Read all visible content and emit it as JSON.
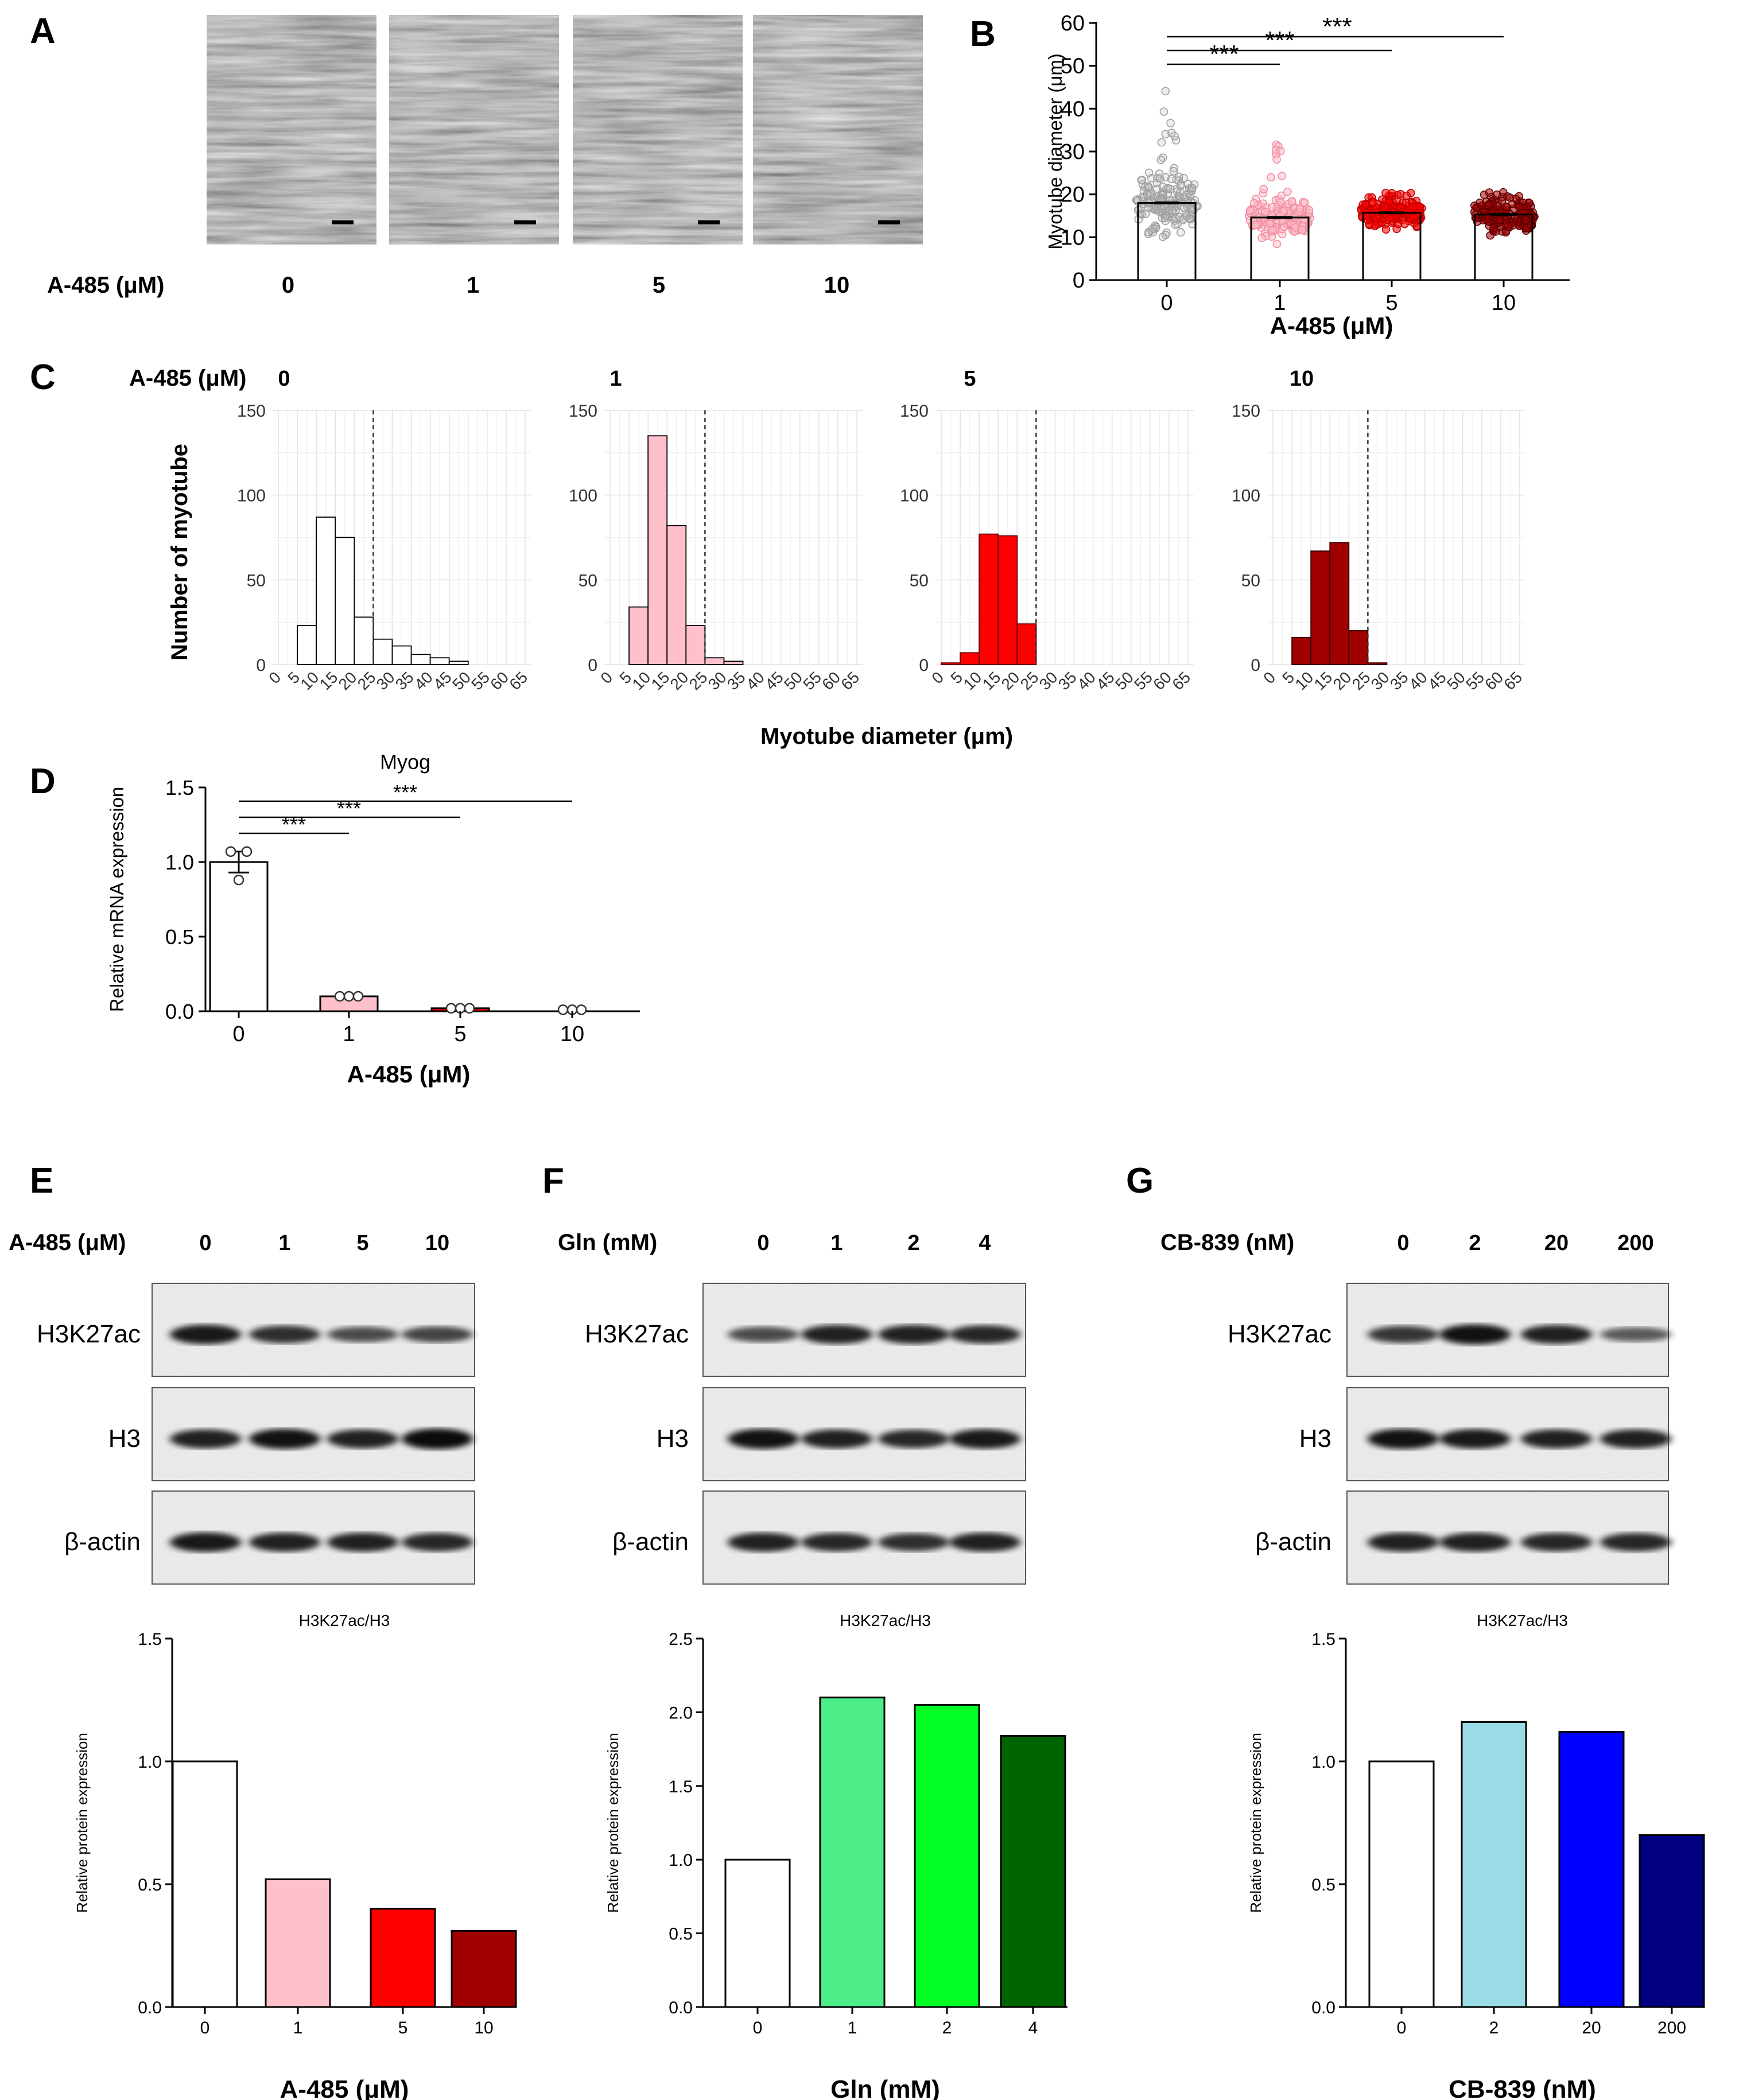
{
  "panel_labels": [
    "A",
    "B",
    "C",
    "D",
    "E",
    "F",
    "G"
  ],
  "colors": {
    "white": "#ffffff",
    "pink": "#ffc0cb",
    "red": "#ff0000",
    "darkred": "#a00000",
    "gray_points": "#bdbdbd",
    "aqua": "#99dce6",
    "blue": "#0000ff",
    "navy": "#000080",
    "mint": "#4ded8a",
    "lime": "#00ff22",
    "darkgreen": "#006400"
  },
  "panel_a": {
    "label": "A-485 (μM)",
    "doses": [
      "0",
      "1",
      "5",
      "10"
    ]
  },
  "chart_data": [
    {
      "id": "B",
      "type": "bar",
      "ylabel": "Myotube diameter (μm)",
      "xlabel": "A-485 (μM)",
      "categories": [
        "0",
        "1",
        "5",
        "10"
      ],
      "values": [
        18,
        14.6,
        15.7,
        15.3
      ],
      "ylim": [
        0,
        60
      ],
      "yticks": [
        0,
        10,
        20,
        30,
        40,
        50,
        60
      ],
      "points_overlay": true,
      "significance": [
        {
          "from": "0",
          "to": "1",
          "label": "***"
        },
        {
          "from": "0",
          "to": "5",
          "label": "***"
        },
        {
          "from": "0",
          "to": "10",
          "label": "***"
        }
      ]
    },
    {
      "id": "C",
      "type": "bar",
      "row_label": "A-485 (μM)",
      "ylabel": "Number of myotube",
      "xlabel": "Myotube diameter (μm)",
      "bin_edges": [
        0,
        5,
        10,
        15,
        20,
        25,
        30,
        35,
        40,
        45,
        50,
        55,
        60,
        65
      ],
      "ylim": [
        0,
        150
      ],
      "yticks": [
        0,
        50,
        100,
        150
      ],
      "reference_line_x": 25,
      "series": [
        {
          "name": "0",
          "counts": [
            0,
            23,
            87,
            75,
            28,
            15,
            11,
            6,
            4,
            2,
            0,
            0,
            0
          ]
        },
        {
          "name": "1",
          "counts": [
            0,
            34,
            135,
            82,
            23,
            4,
            2,
            0,
            0,
            0,
            0,
            0,
            0
          ]
        },
        {
          "name": "5",
          "counts": [
            1,
            7,
            77,
            76,
            24,
            0,
            0,
            0,
            0,
            0,
            0,
            0,
            0
          ]
        },
        {
          "name": "10",
          "counts": [
            0,
            16,
            67,
            72,
            20,
            1,
            0,
            0,
            0,
            0,
            0,
            0,
            0
          ]
        }
      ]
    },
    {
      "id": "D",
      "type": "bar",
      "title": "Myog",
      "ylabel": "Relative mRNA expression",
      "xlabel": "A-485 (μM)",
      "categories": [
        "0",
        "1",
        "5",
        "10"
      ],
      "values": [
        1.0,
        0.1,
        0.02,
        0.0
      ],
      "errors": [
        0.07,
        0,
        0,
        0
      ],
      "points": [
        [
          1.07,
          1.07,
          0.88
        ],
        [
          0.1,
          0.1,
          0.1
        ],
        [
          0.02,
          0.02,
          0.02
        ],
        [
          0.01,
          0.01,
          0.01
        ]
      ],
      "ylim": [
        0,
        1.5
      ],
      "yticks": [
        "0.0",
        "0.5",
        "1.0",
        "1.5"
      ],
      "significance": [
        {
          "from": "0",
          "to": "1",
          "label": "***"
        },
        {
          "from": "0",
          "to": "5",
          "label": "***"
        },
        {
          "from": "0",
          "to": "10",
          "label": "***"
        }
      ]
    },
    {
      "id": "E",
      "type": "bar",
      "title": "H3K27ac/H3",
      "ylabel": "Relative protein expression",
      "xlabel": "A-485 (μM)",
      "categories": [
        "0",
        "1",
        "5",
        "10"
      ],
      "values": [
        1.0,
        0.52,
        0.4,
        0.31
      ],
      "ylim": [
        0,
        1.5
      ],
      "yticks": [
        "0.0",
        "0.5",
        "1.0",
        "1.5"
      ]
    },
    {
      "id": "F",
      "type": "bar",
      "title": "H3K27ac/H3",
      "ylabel": "Relative protein expression",
      "xlabel": "Gln (mM)",
      "categories": [
        "0",
        "1",
        "2",
        "4"
      ],
      "values": [
        1.0,
        2.1,
        2.05,
        1.84
      ],
      "ylim": [
        0,
        2.5
      ],
      "yticks": [
        "0.0",
        "0.5",
        "1.0",
        "1.5",
        "2.0",
        "2.5"
      ]
    },
    {
      "id": "G",
      "type": "bar",
      "title": "H3K27ac/H3",
      "ylabel": "Relative protein expression",
      "xlabel": "CB-839 (nM)",
      "categories": [
        "0",
        "2",
        "20",
        "200"
      ],
      "values": [
        1.0,
        1.16,
        1.12,
        0.7
      ],
      "ylim": [
        0,
        1.5
      ],
      "yticks": [
        "0.0",
        "0.5",
        "1.0",
        "1.5"
      ]
    }
  ],
  "blots": [
    {
      "id": "E",
      "treatment": "A-485 (μM)",
      "lanes": [
        "0",
        "1",
        "5",
        "10"
      ],
      "rows": [
        "H3K27ac",
        "H3",
        "β-actin"
      ]
    },
    {
      "id": "F",
      "treatment": "Gln (mM)",
      "lanes": [
        "0",
        "1",
        "2",
        "4"
      ],
      "rows": [
        "H3K27ac",
        "H3",
        "β-actin"
      ]
    },
    {
      "id": "G",
      "treatment": "CB-839 (nM)",
      "lanes": [
        "0",
        "2",
        "20",
        "200"
      ],
      "rows": [
        "H3K27ac",
        "H3",
        "β-actin"
      ]
    }
  ]
}
